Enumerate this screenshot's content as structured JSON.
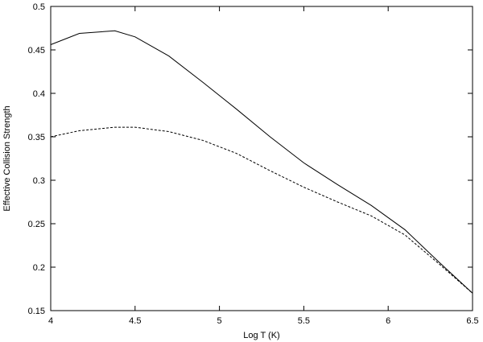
{
  "chart_data": {
    "type": "line",
    "title": "",
    "xlabel": "Log T (K)",
    "ylabel": "Effective Collision Strength",
    "xlim": [
      4,
      6.5
    ],
    "ylim": [
      0.15,
      0.5
    ],
    "x_ticks": [
      "4",
      "4.5",
      "5",
      "5.5",
      "6",
      "6.5"
    ],
    "y_ticks": [
      "0.15",
      "0.2",
      "0.25",
      "0.3",
      "0.35",
      "0.4",
      "0.45",
      "0.5"
    ],
    "grid": false,
    "legend": "none",
    "series": [
      {
        "style": "solid",
        "color": "#000000",
        "x": [
          4.0,
          4.17,
          4.38,
          4.5,
          4.7,
          4.9,
          5.1,
          5.3,
          5.5,
          5.7,
          5.9,
          6.1,
          6.3,
          6.5
        ],
        "y": [
          0.456,
          0.469,
          0.472,
          0.465,
          0.443,
          0.413,
          0.382,
          0.35,
          0.32,
          0.295,
          0.271,
          0.243,
          0.206,
          0.17
        ]
      },
      {
        "style": "dashed",
        "color": "#000000",
        "x": [
          4.0,
          4.17,
          4.38,
          4.5,
          4.7,
          4.9,
          5.1,
          5.3,
          5.5,
          5.7,
          5.9,
          6.1,
          6.3,
          6.5
        ],
        "y": [
          0.35,
          0.357,
          0.361,
          0.361,
          0.356,
          0.346,
          0.331,
          0.311,
          0.292,
          0.275,
          0.259,
          0.237,
          0.204,
          0.17
        ]
      }
    ]
  }
}
